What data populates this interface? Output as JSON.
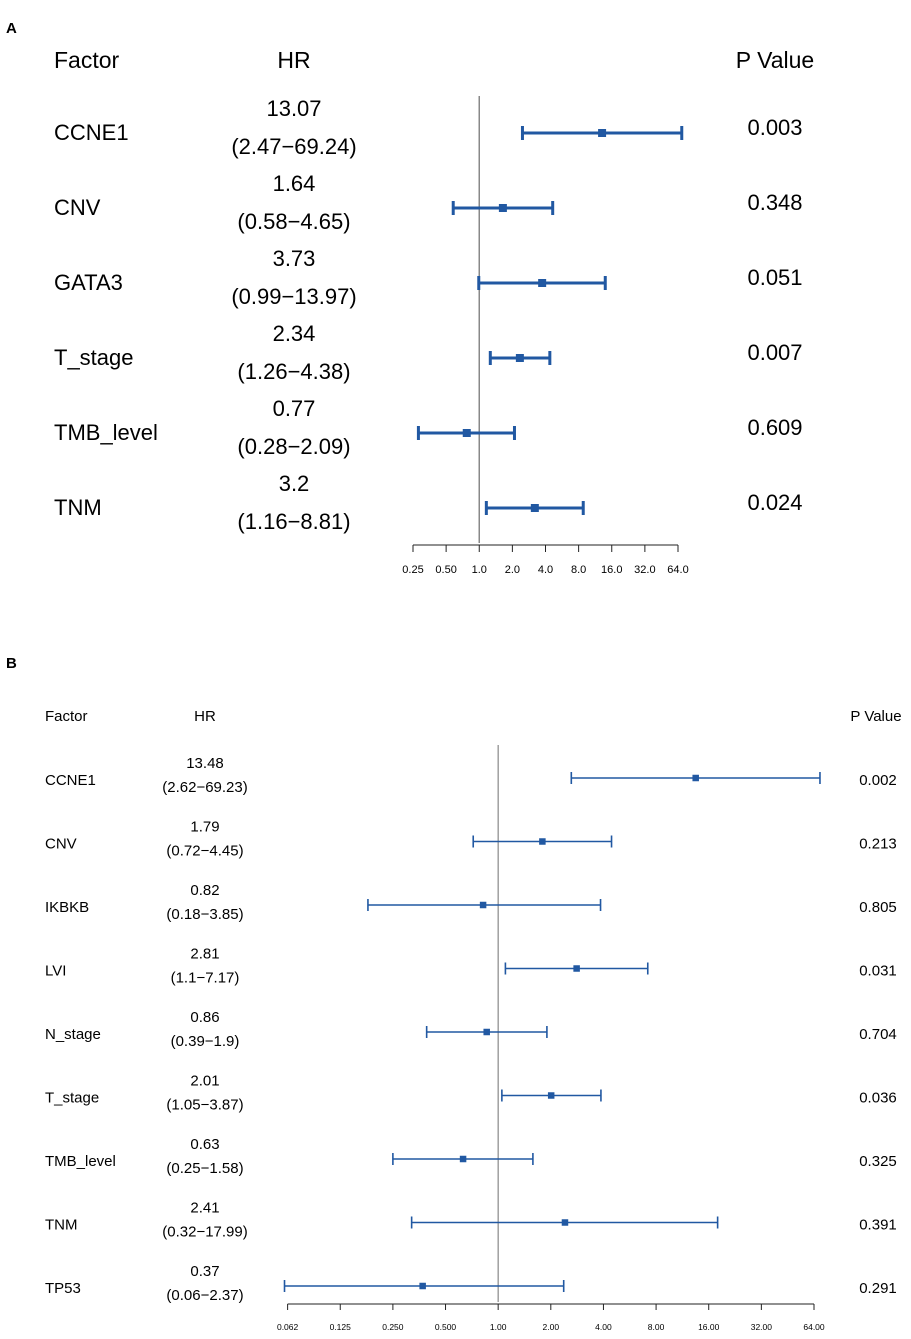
{
  "colors": {
    "marker": "#2158a2",
    "axis": "#222222",
    "refline": "#888888",
    "text": "#1a1a1a"
  },
  "chart_data": [
    {
      "panel": "A",
      "type": "forest",
      "headers": {
        "factor": "Factor",
        "hr": "HR",
        "p": "P Value"
      },
      "xscale": "log2",
      "xlim": [
        0.25,
        64
      ],
      "ticks": [
        0.25,
        0.5,
        1,
        2,
        4,
        8,
        16,
        32,
        64
      ],
      "tick_labels": [
        "0.25",
        "0.50",
        "1.0",
        "2.0",
        "4.0",
        "8.0",
        "16.0",
        "32.0",
        "64.0"
      ],
      "rows": [
        {
          "factor": "CCNE1",
          "hr": 13.07,
          "hr_text": "13.07",
          "ci_text": "(2.47−69.24)",
          "lo": 2.47,
          "hi": 69.24,
          "p": "0.003"
        },
        {
          "factor": "CNV",
          "hr": 1.64,
          "hr_text": "1.64",
          "ci_text": "(0.58−4.65)",
          "lo": 0.58,
          "hi": 4.65,
          "p": "0.348"
        },
        {
          "factor": "GATA3",
          "hr": 3.73,
          "hr_text": "3.73",
          "ci_text": "(0.99−13.97)",
          "lo": 0.99,
          "hi": 13.97,
          "p": "0.051"
        },
        {
          "factor": "T_stage",
          "hr": 2.34,
          "hr_text": "2.34",
          "ci_text": "(1.26−4.38)",
          "lo": 1.26,
          "hi": 4.38,
          "p": "0.007"
        },
        {
          "factor": "TMB_level",
          "hr": 0.77,
          "hr_text": "0.77",
          "ci_text": "(0.28−2.09)",
          "lo": 0.28,
          "hi": 2.09,
          "p": "0.609"
        },
        {
          "factor": "TNM",
          "hr": 3.2,
          "hr_text": "3.2",
          "ci_text": "(1.16−8.81)",
          "lo": 1.16,
          "hi": 8.81,
          "p": "0.024"
        }
      ]
    },
    {
      "panel": "B",
      "type": "forest",
      "headers": {
        "factor": "Factor",
        "hr": "HR",
        "p": "P Value"
      },
      "xscale": "log2",
      "xlim": [
        0.062,
        64
      ],
      "ticks": [
        0.0625,
        0.125,
        0.25,
        0.5,
        1,
        2,
        4,
        8,
        16,
        32,
        64
      ],
      "tick_labels": [
        "0.062",
        "0.125",
        "0.250",
        "0.500",
        "1.00",
        "2.00",
        "4.00",
        "8.00",
        "16.00",
        "32.00",
        "64.00"
      ],
      "rows": [
        {
          "factor": "CCNE1",
          "hr": 13.48,
          "hr_text": "13.48",
          "ci_text": "(2.62−69.23)",
          "lo": 2.62,
          "hi": 69.23,
          "p": "0.002"
        },
        {
          "factor": "CNV",
          "hr": 1.79,
          "hr_text": "1.79",
          "ci_text": "(0.72−4.45)",
          "lo": 0.72,
          "hi": 4.45,
          "p": "0.213"
        },
        {
          "factor": "IKBKB",
          "hr": 0.82,
          "hr_text": "0.82",
          "ci_text": "(0.18−3.85)",
          "lo": 0.18,
          "hi": 3.85,
          "p": "0.805"
        },
        {
          "factor": "LVI",
          "hr": 2.81,
          "hr_text": "2.81",
          "ci_text": "(1.1−7.17)",
          "lo": 1.1,
          "hi": 7.17,
          "p": "0.031"
        },
        {
          "factor": "N_stage",
          "hr": 0.86,
          "hr_text": "0.86",
          "ci_text": "(0.39−1.9)",
          "lo": 0.39,
          "hi": 1.9,
          "p": "0.704"
        },
        {
          "factor": "T_stage",
          "hr": 2.01,
          "hr_text": "2.01",
          "ci_text": "(1.05−3.87)",
          "lo": 1.05,
          "hi": 3.87,
          "p": "0.036"
        },
        {
          "factor": "TMB_level",
          "hr": 0.63,
          "hr_text": "0.63",
          "ci_text": "(0.25−1.58)",
          "lo": 0.25,
          "hi": 1.58,
          "p": "0.325"
        },
        {
          "factor": "TNM",
          "hr": 2.41,
          "hr_text": "2.41",
          "ci_text": "(0.32−17.99)",
          "lo": 0.32,
          "hi": 17.99,
          "p": "0.391"
        },
        {
          "factor": "TP53",
          "hr": 0.37,
          "hr_text": "0.37",
          "ci_text": "(0.06−2.37)",
          "lo": 0.06,
          "hi": 2.37,
          "p": "0.291"
        }
      ]
    }
  ]
}
